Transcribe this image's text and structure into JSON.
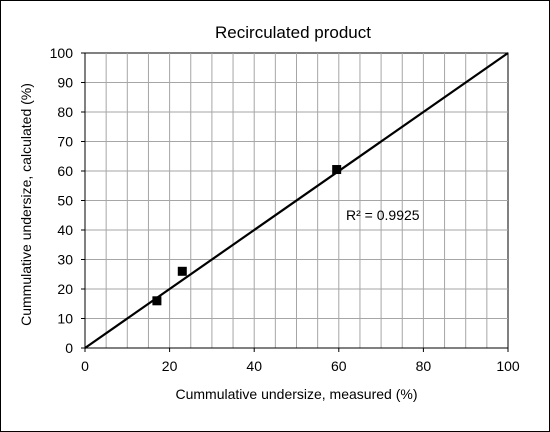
{
  "chart_data": {
    "type": "scatter",
    "title": "Recirculated product",
    "xlabel": "Cummulative undersize,  measured (%)",
    "ylabel": "Cummulative undersize, calculated (%)",
    "xlim": [
      0,
      100
    ],
    "ylim": [
      0,
      100
    ],
    "x_ticks": [
      "0",
      "20",
      "40",
      "60",
      "80",
      "100"
    ],
    "y_ticks": [
      "0",
      "10",
      "20",
      "30",
      "40",
      "50",
      "60",
      "70",
      "80",
      "90",
      "100"
    ],
    "grid": true,
    "series": [
      {
        "points": [
          {
            "x": 17,
            "y": 16
          },
          {
            "x": 23,
            "y": 26
          },
          {
            "x": 59.5,
            "y": 60.5
          }
        ]
      }
    ],
    "line": {
      "x": [
        0,
        100
      ],
      "y": [
        0,
        100
      ]
    },
    "annotation": "R² = 0.9925",
    "marker_color": "#000000",
    "line_color": "#000000"
  }
}
